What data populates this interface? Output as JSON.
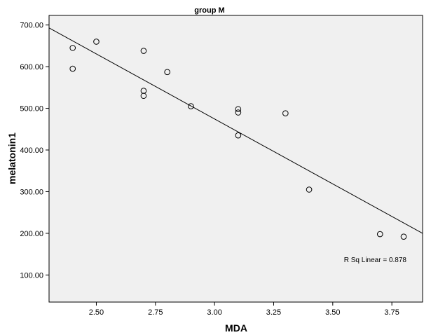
{
  "chart_data": {
    "type": "scatter",
    "title": "group M",
    "xlabel": "MDA",
    "ylabel": "melatonin1",
    "xlim": [
      2.3,
      3.88
    ],
    "ylim": [
      35,
      723
    ],
    "x_ticks": [
      2.5,
      2.75,
      3.0,
      3.25,
      3.5,
      3.75
    ],
    "x_tick_labels": [
      "2.50",
      "2.75",
      "3.00",
      "3.25",
      "3.50",
      "3.75"
    ],
    "y_ticks": [
      100,
      200,
      300,
      400,
      500,
      600,
      700
    ],
    "y_tick_labels": [
      "100.00",
      "200.00",
      "300.00",
      "400.00",
      "500.00",
      "600.00",
      "700.00"
    ],
    "grid": false,
    "points": [
      {
        "x": 2.4,
        "y": 645
      },
      {
        "x": 2.4,
        "y": 595
      },
      {
        "x": 2.5,
        "y": 660
      },
      {
        "x": 2.7,
        "y": 638
      },
      {
        "x": 2.7,
        "y": 542
      },
      {
        "x": 2.7,
        "y": 530
      },
      {
        "x": 2.8,
        "y": 587
      },
      {
        "x": 2.9,
        "y": 505
      },
      {
        "x": 3.1,
        "y": 498
      },
      {
        "x": 3.1,
        "y": 490
      },
      {
        "x": 3.1,
        "y": 435
      },
      {
        "x": 3.3,
        "y": 488
      },
      {
        "x": 3.4,
        "y": 305
      },
      {
        "x": 3.7,
        "y": 198
      },
      {
        "x": 3.8,
        "y": 192
      }
    ],
    "fit_line": {
      "x": [
        2.3,
        3.88
      ],
      "y": [
        693,
        200
      ]
    },
    "annotation": "R Sq Linear = 0.878",
    "colors": {
      "plot_background": "#f0f0f0",
      "marker": "#000000",
      "line": "#000000"
    }
  }
}
